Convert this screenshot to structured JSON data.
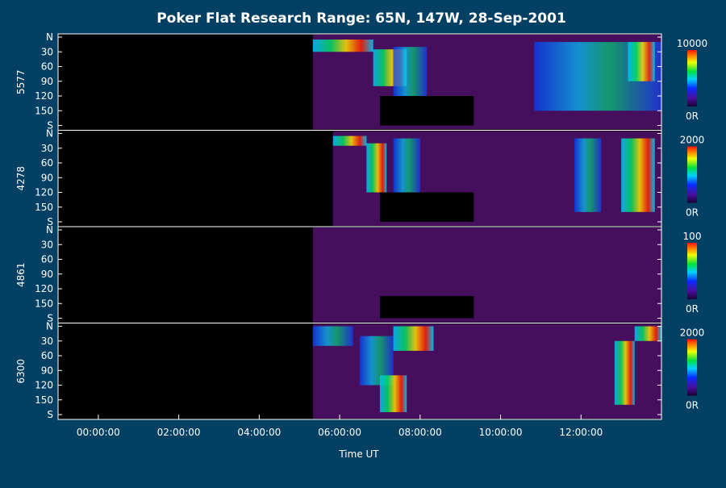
{
  "chart_data": {
    "type": "heatmap",
    "title": "Poker Flat Research Range: 65N, 147W, 28-Sep-2001",
    "xlabel": "Time UT",
    "xlim": [
      "23:00:00",
      "14:00:00"
    ],
    "x_ticks": [
      "00:00:00",
      "02:00:00",
      "04:00:00",
      "06:00:00",
      "08:00:00",
      "10:00:00",
      "12:00:00"
    ],
    "y_ticks": [
      "N",
      "30",
      "60",
      "90",
      "120",
      "150",
      "S"
    ],
    "ylim": [
      0,
      180
    ],
    "panels": [
      {
        "name": "5577",
        "colorbar_max": "10000",
        "colorbar_min": "0R",
        "data_start": "05:20:00",
        "data_end": "14:00:00",
        "blank_block": {
          "t_start": "07:00:00",
          "t_end": "09:20:00",
          "y_start": 120,
          "y_end": 180
        },
        "features": [
          {
            "t_start": "05:20:00",
            "t_end": "06:50:00",
            "y_start": 5,
            "y_end": 30,
            "level": "high"
          },
          {
            "t_start": "06:50:00",
            "t_end": "07:40:00",
            "y_start": 25,
            "y_end": 100,
            "level": "high"
          },
          {
            "t_start": "07:20:00",
            "t_end": "08:10:00",
            "y_start": 20,
            "y_end": 130,
            "level": "medium"
          },
          {
            "t_start": "10:50:00",
            "t_end": "14:00:00",
            "y_start": 10,
            "y_end": 150,
            "level": "medium"
          },
          {
            "t_start": "13:10:00",
            "t_end": "13:50:00",
            "y_start": 10,
            "y_end": 90,
            "level": "high"
          }
        ]
      },
      {
        "name": "4278",
        "colorbar_max": "2000",
        "colorbar_min": "0R",
        "data_start": "05:50:00",
        "data_end": "14:00:00",
        "blank_block": {
          "t_start": "07:00:00",
          "t_end": "09:20:00",
          "y_start": 120,
          "y_end": 180
        },
        "features": [
          {
            "t_start": "05:50:00",
            "t_end": "06:40:00",
            "y_start": 5,
            "y_end": 25,
            "level": "high"
          },
          {
            "t_start": "06:40:00",
            "t_end": "07:10:00",
            "y_start": 20,
            "y_end": 120,
            "level": "high"
          },
          {
            "t_start": "07:20:00",
            "t_end": "08:00:00",
            "y_start": 10,
            "y_end": 120,
            "level": "medium"
          },
          {
            "t_start": "11:50:00",
            "t_end": "12:30:00",
            "y_start": 10,
            "y_end": 160,
            "level": "medium"
          },
          {
            "t_start": "13:00:00",
            "t_end": "13:50:00",
            "y_start": 10,
            "y_end": 160,
            "level": "high"
          }
        ]
      },
      {
        "name": "4861",
        "colorbar_max": "100",
        "colorbar_min": "0R",
        "data_start": "05:20:00",
        "data_end": "14:00:00",
        "blank_block": {
          "t_start": "07:00:00",
          "t_end": "09:20:00",
          "y_start": 135,
          "y_end": 180
        },
        "features": []
      },
      {
        "name": "6300",
        "colorbar_max": "2000",
        "colorbar_min": "0R",
        "data_start": "05:20:00",
        "data_end": "14:00:00",
        "blank_block": null,
        "features": [
          {
            "t_start": "05:20:00",
            "t_end": "06:20:00",
            "y_start": 0,
            "y_end": 40,
            "level": "medium"
          },
          {
            "t_start": "06:30:00",
            "t_end": "07:20:00",
            "y_start": 20,
            "y_end": 120,
            "level": "medium"
          },
          {
            "t_start": "07:00:00",
            "t_end": "07:40:00",
            "y_start": 100,
            "y_end": 175,
            "level": "high"
          },
          {
            "t_start": "07:20:00",
            "t_end": "08:20:00",
            "y_start": 0,
            "y_end": 50,
            "level": "high"
          },
          {
            "t_start": "12:50:00",
            "t_end": "13:20:00",
            "y_start": 30,
            "y_end": 160,
            "level": "high"
          },
          {
            "t_start": "13:20:00",
            "t_end": "14:00:00",
            "y_start": 0,
            "y_end": 30,
            "level": "high"
          }
        ]
      }
    ],
    "colors": {
      "background": "#034064",
      "panel_background": "#000000",
      "text": "#ffffff"
    }
  }
}
